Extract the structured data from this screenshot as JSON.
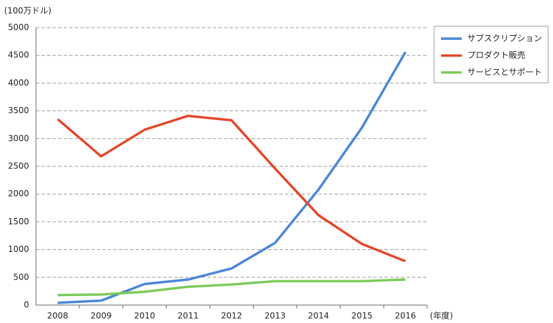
{
  "chart_data": {
    "type": "line",
    "y_label": "(100万ドル)",
    "x_label": "(年度)",
    "categories": [
      "2008",
      "2009",
      "2010",
      "2011",
      "2012",
      "2013",
      "2014",
      "2015",
      "2016"
    ],
    "series": [
      {
        "name": "サブスクリプション",
        "color": "#4a86d8",
        "values": [
          40,
          80,
          380,
          460,
          660,
          1120,
          2080,
          3200,
          4560
        ]
      },
      {
        "name": "プロダクト販売",
        "color": "#e2472a",
        "values": [
          3350,
          2680,
          3160,
          3410,
          3330,
          2460,
          1620,
          1100,
          790
        ]
      },
      {
        "name": "サービスとサポート",
        "color": "#7ccb5a",
        "values": [
          180,
          190,
          240,
          330,
          370,
          430,
          430,
          430,
          460
        ]
      }
    ],
    "ylim": [
      0,
      5000
    ],
    "yticks": [
      0,
      500,
      1000,
      1500,
      2000,
      2500,
      3000,
      3500,
      4000,
      4500,
      5000
    ],
    "grid": true,
    "legend": "right"
  }
}
